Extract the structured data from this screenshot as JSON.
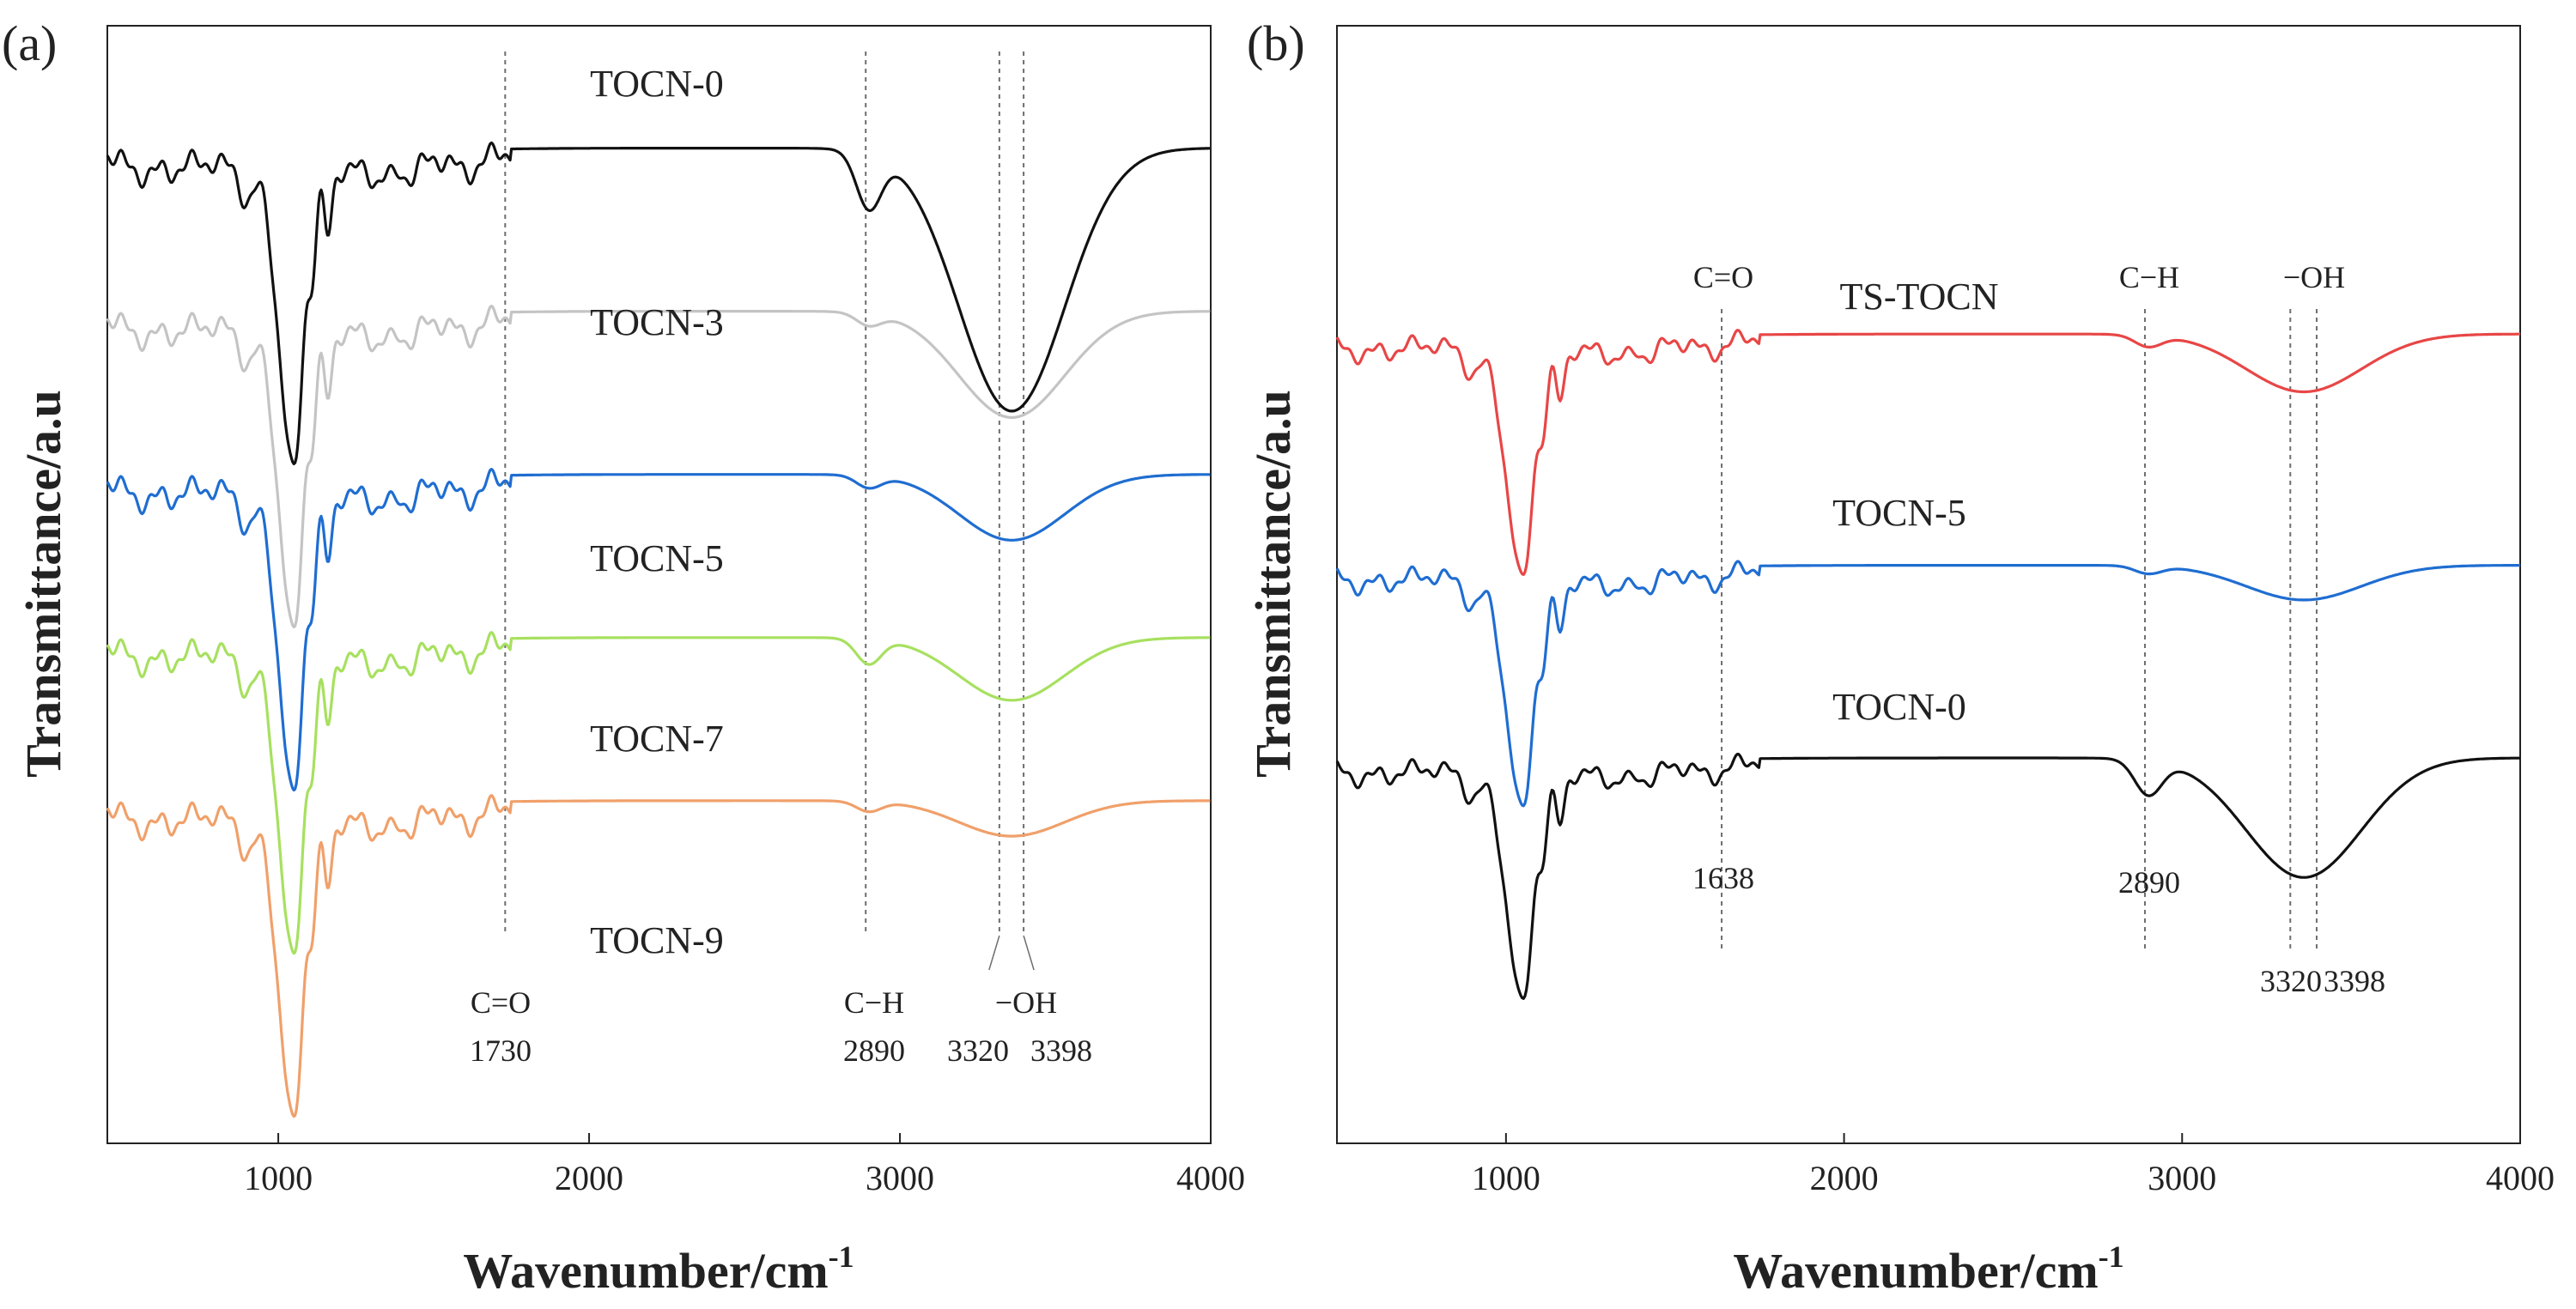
{
  "chart_data": [
    {
      "panel": "(a)",
      "type": "line",
      "xlabel": "Wavenumber/cm",
      "xlabel_sup": "-1",
      "ylabel": "Transmittance/a.u",
      "xlim": [
        450,
        4000
      ],
      "xticks": [
        "1000",
        "2000",
        "3000",
        "4000"
      ],
      "tick_values": [
        1000,
        2000,
        3000,
        4000
      ],
      "series": [
        {
          "name": "TOCN-0",
          "color": "#111111",
          "baseline": 5.5,
          "oh": 2.6,
          "ch": 0.55
        },
        {
          "name": "TOCN-3",
          "color": "#c4c4c4",
          "baseline": 4.5,
          "oh": 1.05,
          "ch": 0.12
        },
        {
          "name": "TOCN-5",
          "color": "#1f6dd1",
          "baseline": 3.5,
          "oh": 0.65,
          "ch": 0.12
        },
        {
          "name": "TOCN-7",
          "color": "#a7e05f",
          "baseline": 2.5,
          "oh": 0.62,
          "ch": 0.25
        },
        {
          "name": "TOCN-9",
          "color": "#f0a06a",
          "baseline": 1.5,
          "oh": 0.35,
          "ch": 0.1
        }
      ],
      "markers": [
        {
          "group": "C=O",
          "label": "C=O",
          "values": [
            1730
          ],
          "value_labels": [
            "1730"
          ]
        },
        {
          "group": "C-H",
          "label": "C−H",
          "values": [
            2890
          ],
          "value_labels": [
            "2890"
          ]
        },
        {
          "group": "OH",
          "label": "−OH",
          "values": [
            3320,
            3398
          ],
          "value_labels": [
            "3320",
            "3398"
          ]
        }
      ]
    },
    {
      "panel": "(b)",
      "type": "line",
      "xlabel": "Wavenumber/cm",
      "xlabel_sup": "-1",
      "ylabel": "Transmittance/a.u",
      "xlim": [
        500,
        4000
      ],
      "xticks": [
        "1000",
        "2000",
        "3000",
        "4000"
      ],
      "tick_values": [
        1000,
        2000,
        3000,
        4000
      ],
      "series": [
        {
          "name": "TS-TOCN",
          "color": "#e84646",
          "baseline": 4.2,
          "oh": 0.75,
          "ch": 0.15
        },
        {
          "name": "TOCN-5",
          "color": "#1f6dd1",
          "baseline": 3.0,
          "oh": 0.45,
          "ch": 0.1
        },
        {
          "name": "TOCN-0",
          "color": "#111111",
          "baseline": 2.0,
          "oh": 1.55,
          "ch": 0.45
        }
      ],
      "markers": [
        {
          "group": "C=O",
          "label": "C=O",
          "values": [
            1638
          ],
          "value_labels": [
            "1638"
          ]
        },
        {
          "group": "C-H",
          "label": "C−H",
          "values": [
            2890
          ],
          "value_labels": [
            "2890"
          ]
        },
        {
          "group": "OH",
          "label": "−OH",
          "values": [
            3320,
            3398
          ],
          "value_labels": [
            "3320",
            "3398"
          ]
        }
      ]
    }
  ]
}
